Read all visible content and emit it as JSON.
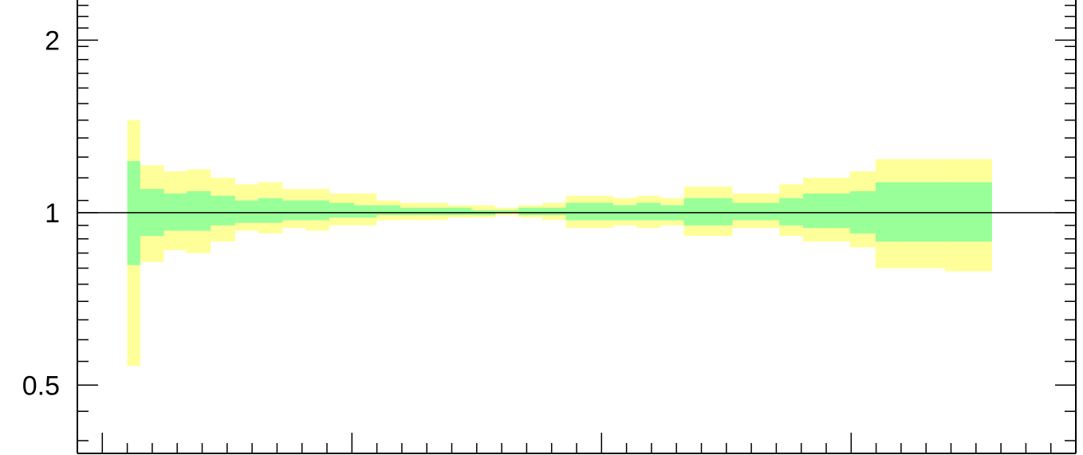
{
  "chart_data": {
    "type": "area",
    "title": "",
    "xlabel": "",
    "ylabel": "",
    "y_scale": "log",
    "ylim": [
      0.38,
      2.35
    ],
    "grid": false,
    "legend": "none",
    "y_tick_labels": [
      {
        "value": 0.5,
        "label": "0.5"
      },
      {
        "value": 1,
        "label": "1"
      },
      {
        "value": 2,
        "label": "2"
      }
    ],
    "reference_line": 1,
    "bin_edges": [
      0.04,
      0.05,
      0.069,
      0.0875,
      0.1065,
      0.126,
      0.145,
      0.164,
      0.183,
      0.2015,
      0.2215,
      0.2395,
      0.2585,
      0.2775,
      0.2965,
      0.3155,
      0.3345,
      0.3535,
      0.3725,
      0.3915,
      0.41,
      0.429,
      0.448,
      0.467,
      0.486,
      0.505,
      0.5245,
      0.5435,
      0.5625,
      0.5815,
      0.6005,
      0.619,
      0.6395,
      0.6575,
      0.695,
      0.7325,
      0.77
    ],
    "series": [
      {
        "color": "#ffff99",
        "upper": [
          1.45,
          1.21,
          1.18,
          1.19,
          1.15,
          1.12,
          1.13,
          1.1,
          1.1,
          1.08,
          1.08,
          1.05,
          1.04,
          1.04,
          1.03,
          1.03,
          1.02,
          1.03,
          1.04,
          1.07,
          1.07,
          1.06,
          1.07,
          1.06,
          1.11,
          1.11,
          1.08,
          1.08,
          1.12,
          1.15,
          1.15,
          1.18,
          1.24,
          1.24,
          1.24
        ],
        "lower": [
          0.54,
          0.82,
          0.86,
          0.85,
          0.89,
          0.93,
          0.92,
          0.94,
          0.93,
          0.95,
          0.95,
          0.97,
          0.97,
          0.97,
          0.98,
          0.98,
          0.99,
          0.98,
          0.97,
          0.94,
          0.94,
          0.95,
          0.94,
          0.95,
          0.91,
          0.91,
          0.94,
          0.94,
          0.91,
          0.89,
          0.89,
          0.87,
          0.8,
          0.8,
          0.79
        ]
      },
      {
        "color": "#99ff99",
        "upper": [
          1.23,
          1.1,
          1.08,
          1.09,
          1.07,
          1.05,
          1.06,
          1.05,
          1.05,
          1.04,
          1.03,
          1.03,
          1.02,
          1.02,
          1.02,
          1.01,
          1.01,
          1.02,
          1.02,
          1.04,
          1.04,
          1.03,
          1.04,
          1.03,
          1.06,
          1.06,
          1.04,
          1.04,
          1.06,
          1.08,
          1.08,
          1.09,
          1.13,
          1.13,
          1.13
        ],
        "lower": [
          0.81,
          0.91,
          0.93,
          0.93,
          0.95,
          0.96,
          0.96,
          0.97,
          0.97,
          0.98,
          0.98,
          0.99,
          0.99,
          0.99,
          0.99,
          0.99,
          1.0,
          0.99,
          0.99,
          0.97,
          0.97,
          0.97,
          0.97,
          0.97,
          0.95,
          0.95,
          0.97,
          0.97,
          0.95,
          0.94,
          0.94,
          0.92,
          0.89,
          0.89,
          0.89
        ]
      }
    ]
  }
}
